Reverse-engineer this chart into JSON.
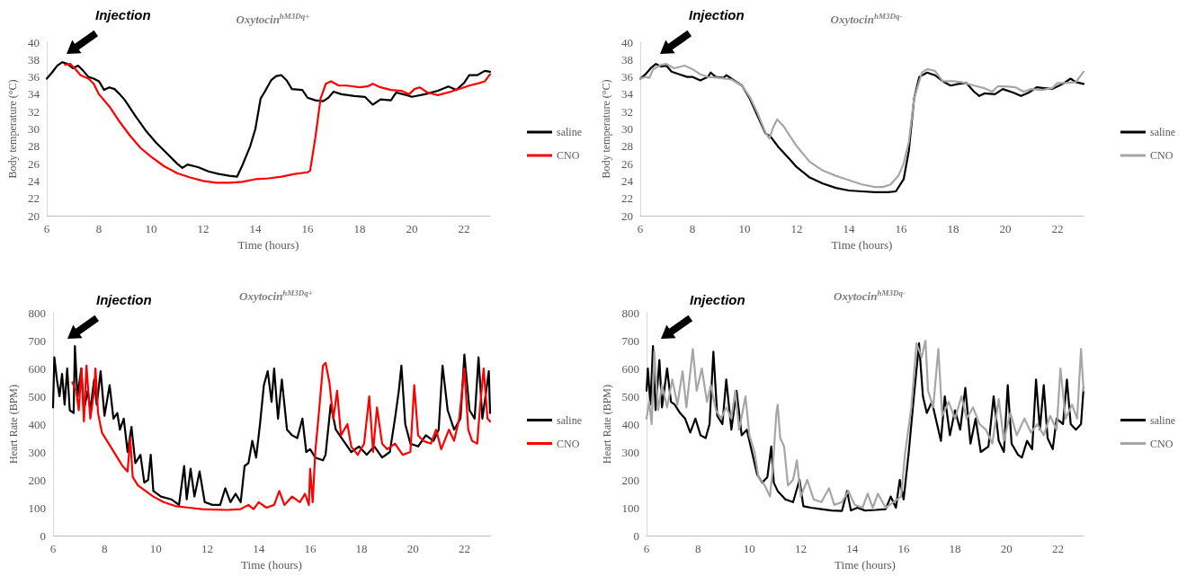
{
  "chart_data": [
    {
      "type": "line",
      "title": "Oxytocin$^{hM3Dq+}$",
      "xlabel": "Time (hours)",
      "ylabel": "Body temperature (°C)",
      "xlim": [
        6,
        23
      ],
      "xticks": [
        6,
        8,
        10,
        12,
        14,
        16,
        18,
        20,
        22
      ],
      "ylim": [
        20,
        40
      ],
      "yticks": [
        20,
        22,
        24,
        26,
        28,
        30,
        32,
        34,
        36,
        38,
        40
      ],
      "legend": "right",
      "line_style": "solid",
      "annotations": [
        "Injection"
      ],
      "series": [
        {
          "name": "saline",
          "color": "#000000",
          "x": [
            6,
            6.2,
            6.4,
            6.6,
            6.8,
            7,
            7.2,
            7.4,
            7.6,
            7.8,
            8,
            8.2,
            8.4,
            8.6,
            8.8,
            9,
            9.4,
            9.8,
            10.2,
            10.6,
            11,
            11.2,
            11.4,
            11.8,
            12.2,
            12.6,
            13,
            13.3,
            13.5,
            13.8,
            14,
            14.2,
            14.4,
            14.6,
            14.8,
            15,
            15.2,
            15.4,
            15.8,
            16,
            16.3,
            16.6,
            16.8,
            17,
            17.3,
            17.8,
            18.2,
            18.5,
            18.8,
            19.2,
            19.4,
            19.8,
            20,
            20.5,
            21,
            21.4,
            21.7,
            22,
            22.2,
            22.5,
            22.8,
            23
          ],
          "values": [
            35.8,
            36.5,
            37.3,
            37.7,
            37.5,
            37,
            37.3,
            36.7,
            36,
            35.8,
            35.5,
            34.5,
            34.8,
            34.6,
            34,
            33.3,
            31.5,
            29.8,
            28.4,
            27.2,
            26,
            25.5,
            25.9,
            25.6,
            25.1,
            24.8,
            24.6,
            24.5,
            25.8,
            28,
            30,
            33.5,
            34.5,
            35.6,
            36.1,
            36.2,
            35.6,
            34.6,
            34.5,
            33.6,
            33.3,
            33.2,
            33.6,
            34.3,
            34,
            33.8,
            33.7,
            32.8,
            33.4,
            33.3,
            34.2,
            33.9,
            33.7,
            34,
            34.4,
            34.9,
            34.5,
            35.3,
            36.2,
            36.2,
            36.7,
            36.6
          ]
        },
        {
          "name": "CNO",
          "color": "#ff0000",
          "x": [
            6.7,
            6.9,
            7.1,
            7.3,
            7.6,
            7.8,
            8,
            8.4,
            8.8,
            9.2,
            9.6,
            10,
            10.5,
            11,
            11.5,
            12,
            12.5,
            13,
            13.5,
            14,
            14.5,
            15,
            15.5,
            16,
            16.1,
            16.3,
            16.5,
            16.7,
            16.9,
            17.2,
            17.5,
            18,
            18.3,
            18.5,
            18.8,
            19.2,
            19.6,
            19.9,
            20.1,
            20.3,
            20.6,
            21,
            21.5,
            22,
            22.2,
            22.6,
            22.8,
            23
          ],
          "values": [
            37.4,
            37.5,
            36.9,
            36.2,
            35.8,
            35.2,
            34,
            32.6,
            30.8,
            29.2,
            27.8,
            26.8,
            25.7,
            24.9,
            24.4,
            24,
            23.8,
            23.8,
            23.9,
            24.2,
            24.3,
            24.5,
            24.8,
            25,
            25.2,
            29,
            33.5,
            35.2,
            35.5,
            35,
            35,
            34.8,
            34.9,
            35.2,
            34.8,
            34.5,
            34.4,
            34,
            34.6,
            34.8,
            34.2,
            33.9,
            34.3,
            34.8,
            35,
            35.3,
            35.5,
            36.3
          ]
        }
      ]
    },
    {
      "type": "line",
      "title": "Oxytocin$^{hM3Dq-}$",
      "xlabel": "Time (hours)",
      "ylabel": "Body temperature (°C)",
      "xlim": [
        6,
        23
      ],
      "xticks": [
        6,
        8,
        10,
        12,
        14,
        16,
        18,
        20,
        22
      ],
      "ylim": [
        20,
        40
      ],
      "yticks": [
        20,
        22,
        24,
        26,
        28,
        30,
        32,
        34,
        36,
        38,
        40
      ],
      "legend": "right",
      "line_style": "solid",
      "annotations": [
        "Injection"
      ],
      "series": [
        {
          "name": "saline",
          "color": "#000000",
          "x": [
            6,
            6.2,
            6.4,
            6.6,
            6.8,
            7,
            7.2,
            7.5,
            7.8,
            8,
            8.3,
            8.6,
            8.7,
            8.9,
            9.2,
            9.3,
            9.6,
            9.9,
            10.2,
            10.5,
            10.8,
            11,
            11.3,
            11.7,
            12,
            12.5,
            13,
            13.5,
            14,
            14.5,
            15,
            15.5,
            15.8,
            16.1,
            16.3,
            16.5,
            16.7,
            17,
            17.3,
            17.6,
            17.9,
            18.2,
            18.5,
            18.8,
            19,
            19.2,
            19.6,
            19.9,
            20.3,
            20.6,
            20.9,
            21.2,
            21.5,
            21.8,
            22.2,
            22.5,
            22.7,
            23
          ],
          "values": [
            35.8,
            36.3,
            37,
            37.5,
            37.2,
            37.3,
            36.6,
            36.3,
            36,
            36,
            35.6,
            36,
            36.5,
            36,
            35.9,
            36.2,
            35.6,
            35,
            33.5,
            31.5,
            29.5,
            29.1,
            27.9,
            26.6,
            25.6,
            24.4,
            23.7,
            23.2,
            22.9,
            22.8,
            22.7,
            22.7,
            22.8,
            24.2,
            27.5,
            33.5,
            36,
            36.5,
            36.2,
            35.5,
            35,
            35.2,
            35.3,
            34.3,
            33.8,
            34.1,
            34,
            34.6,
            34.2,
            33.8,
            34.2,
            34.8,
            34.7,
            34.6,
            35.2,
            35.8,
            35.4,
            35.2
          ]
        },
        {
          "name": "CNO",
          "color": "#a6a6a6",
          "x": [
            6,
            6.2,
            6.35,
            6.5,
            6.8,
            7,
            7.3,
            7.7,
            8,
            8.3,
            8.6,
            9,
            9.5,
            9.9,
            10.2,
            10.5,
            10.8,
            10.95,
            11.1,
            11.25,
            11.5,
            12,
            12.5,
            13,
            13.5,
            14,
            14.5,
            15,
            15.3,
            15.6,
            15.9,
            16.1,
            16.3,
            16.5,
            16.8,
            17,
            17.3,
            17.6,
            18,
            18.3,
            18.8,
            19.2,
            19.5,
            19.7,
            20,
            20.4,
            20.7,
            21,
            21.4,
            21.8,
            22,
            22.3,
            22.7,
            23
          ],
          "values": [
            35.8,
            36,
            35.9,
            36.9,
            37.4,
            37.5,
            37,
            37.3,
            36.9,
            36.3,
            36,
            35.9,
            35.7,
            35,
            33.7,
            31.8,
            29.6,
            28.9,
            30.2,
            31.1,
            30.3,
            28,
            26.2,
            25.2,
            24.6,
            24.1,
            23.6,
            23.3,
            23.3,
            23.6,
            24.6,
            26,
            28.5,
            33.5,
            36.5,
            36.9,
            36.7,
            35.5,
            35.5,
            35.4,
            35,
            34.7,
            34.3,
            34.9,
            34.9,
            34.8,
            34.3,
            34.6,
            34.5,
            34.7,
            35.3,
            35.3,
            35.4,
            36.6
          ]
        }
      ]
    },
    {
      "type": "line",
      "title": "Oxytocin$^{hM3Dq+}$",
      "xlabel": "Time (hours)",
      "ylabel": "Heart Rate (BPM)",
      "xlim": [
        6,
        23
      ],
      "xticks": [
        6,
        8,
        10,
        12,
        14,
        16,
        18,
        20,
        22
      ],
      "ylim": [
        0,
        800
      ],
      "yticks": [
        0,
        100,
        200,
        300,
        400,
        500,
        600,
        700,
        800
      ],
      "legend": "right",
      "line_style": "solid",
      "annotations": [
        "Injection"
      ],
      "series": [
        {
          "name": "saline",
          "color": "#000000",
          "x": [
            6,
            6.05,
            6.15,
            6.25,
            6.35,
            6.45,
            6.55,
            6.65,
            6.8,
            6.85,
            6.95,
            7.1,
            7.2,
            7.35,
            7.45,
            7.6,
            7.7,
            7.85,
            8,
            8.2,
            8.35,
            8.5,
            8.6,
            8.75,
            8.9,
            9.05,
            9.2,
            9.4,
            9.55,
            9.7,
            9.8,
            9.9,
            10.2,
            10.6,
            10.9,
            11.1,
            11.2,
            11.35,
            11.5,
            11.7,
            11.9,
            12.2,
            12.5,
            12.7,
            12.9,
            13.1,
            13.3,
            13.45,
            13.6,
            13.75,
            13.9,
            14.05,
            14.2,
            14.35,
            14.5,
            14.6,
            14.75,
            14.9,
            15.1,
            15.3,
            15.5,
            15.7,
            15.85,
            16,
            16.2,
            16.5,
            16.6,
            16.8,
            17,
            17.3,
            17.6,
            17.9,
            18.2,
            18.5,
            18.8,
            19.1,
            19.3,
            19.45,
            19.55,
            19.7,
            19.9,
            20.2,
            20.5,
            20.8,
            21,
            21.15,
            21.35,
            21.6,
            21.85,
            22,
            22.2,
            22.4,
            22.55,
            22.7,
            22.85,
            22.95,
            23
          ],
          "values": [
            460,
            640,
            560,
            500,
            580,
            470,
            600,
            450,
            440,
            680,
            500,
            600,
            450,
            520,
            450,
            560,
            470,
            590,
            430,
            540,
            420,
            440,
            380,
            420,
            300,
            390,
            260,
            290,
            190,
            200,
            290,
            160,
            140,
            130,
            110,
            250,
            130,
            240,
            140,
            230,
            120,
            110,
            110,
            170,
            120,
            150,
            120,
            250,
            260,
            340,
            280,
            400,
            540,
            590,
            480,
            600,
            420,
            560,
            380,
            360,
            350,
            420,
            300,
            310,
            280,
            270,
            290,
            470,
            380,
            340,
            300,
            320,
            290,
            320,
            280,
            300,
            420,
            520,
            610,
            400,
            330,
            320,
            360,
            340,
            380,
            610,
            450,
            380,
            420,
            650,
            450,
            420,
            640,
            420,
            520,
            590,
            440
          ]
        },
        {
          "name": "CNO",
          "color": "#ff0000",
          "x": [
            6.75,
            6.9,
            7,
            7.1,
            7.2,
            7.3,
            7.45,
            7.6,
            7.65,
            7.75,
            7.9,
            8.1,
            8.3,
            8.5,
            8.7,
            8.9,
            9,
            9.1,
            9.3,
            9.6,
            9.9,
            10.3,
            10.8,
            11.3,
            11.8,
            12.3,
            12.8,
            13.3,
            13.6,
            13.8,
            14,
            14.3,
            14.6,
            14.8,
            15,
            15.3,
            15.6,
            15.8,
            15.95,
            16,
            16.1,
            16.2,
            16.35,
            16.5,
            16.6,
            16.75,
            16.9,
            17.05,
            17.2,
            17.45,
            17.6,
            17.85,
            18.1,
            18.3,
            18.45,
            18.6,
            18.8,
            19,
            19.3,
            19.6,
            19.9,
            20.05,
            20.2,
            20.4,
            20.7,
            20.9,
            21.1,
            21.4,
            21.6,
            21.8,
            22,
            22.15,
            22.3,
            22.5,
            22.6,
            22.75,
            22.9,
            23
          ],
          "values": [
            550,
            520,
            450,
            600,
            410,
            610,
            420,
            520,
            600,
            440,
            370,
            340,
            310,
            280,
            250,
            230,
            350,
            210,
            180,
            160,
            140,
            120,
            105,
            100,
            95,
            93,
            92,
            95,
            110,
            95,
            120,
            100,
            110,
            160,
            110,
            140,
            120,
            150,
            110,
            240,
            120,
            300,
            450,
            610,
            620,
            550,
            420,
            520,
            360,
            400,
            320,
            290,
            330,
            500,
            300,
            460,
            330,
            310,
            330,
            290,
            300,
            540,
            360,
            340,
            330,
            380,
            310,
            380,
            340,
            420,
            600,
            380,
            340,
            330,
            450,
            600,
            420,
            410
          ]
        }
      ]
    },
    {
      "type": "line",
      "title": "Oxytocin$^{hM3Dq-}$",
      "xlabel": "Time (hours)",
      "ylabel": "Heart Rate (BPM)",
      "xlim": [
        6,
        23
      ],
      "xticks": [
        6,
        8,
        10,
        12,
        14,
        16,
        18,
        20,
        22
      ],
      "ylim": [
        0,
        800
      ],
      "yticks": [
        0,
        100,
        200,
        300,
        400,
        500,
        600,
        700,
        800
      ],
      "legend": "right",
      "line_style": "solid",
      "annotations": [
        "Injection"
      ],
      "series": [
        {
          "name": "saline",
          "color": "#000000",
          "x": [
            6,
            6.05,
            6.15,
            6.25,
            6.35,
            6.5,
            6.6,
            6.8,
            6.95,
            7.1,
            7.3,
            7.5,
            7.7,
            7.9,
            8.1,
            8.3,
            8.45,
            8.6,
            8.75,
            8.95,
            9.1,
            9.3,
            9.5,
            9.7,
            9.9,
            10.1,
            10.3,
            10.5,
            10.7,
            10.85,
            10.95,
            11.1,
            11.4,
            11.7,
            11.95,
            12.1,
            12.4,
            12.8,
            13.2,
            13.6,
            13.8,
            13.95,
            14.2,
            14.5,
            14.9,
            15.3,
            15.5,
            15.7,
            15.85,
            16,
            16.2,
            16.4,
            16.6,
            16.75,
            16.9,
            17.1,
            17.3,
            17.45,
            17.6,
            17.8,
            18,
            18.2,
            18.4,
            18.6,
            18.8,
            19,
            19.3,
            19.5,
            19.7,
            19.9,
            20.05,
            20.2,
            20.45,
            20.6,
            20.8,
            21,
            21.15,
            21.3,
            21.45,
            21.6,
            21.8,
            21.95,
            22.2,
            22.35,
            22.5,
            22.7,
            22.9,
            23
          ],
          "values": [
            520,
            600,
            470,
            680,
            450,
            630,
            460,
            600,
            480,
            470,
            440,
            420,
            370,
            420,
            360,
            350,
            400,
            660,
            430,
            400,
            560,
            380,
            520,
            360,
            380,
            300,
            220,
            190,
            210,
            320,
            190,
            160,
            130,
            120,
            200,
            105,
            100,
            95,
            90,
            88,
            160,
            90,
            100,
            90,
            92,
            95,
            140,
            100,
            200,
            130,
            300,
            500,
            690,
            500,
            440,
            480,
            400,
            340,
            500,
            360,
            450,
            380,
            530,
            330,
            420,
            300,
            320,
            500,
            340,
            300,
            540,
            330,
            290,
            280,
            340,
            310,
            560,
            380,
            540,
            350,
            310,
            420,
            400,
            560,
            400,
            380,
            400,
            530
          ]
        },
        {
          "name": "CNO",
          "color": "#a6a6a6",
          "x": [
            6,
            6.1,
            6.2,
            6.3,
            6.45,
            6.6,
            6.8,
            7,
            7.2,
            7.4,
            7.55,
            7.8,
            7.95,
            8.15,
            8.35,
            8.5,
            8.7,
            8.9,
            9.1,
            9.3,
            9.45,
            9.6,
            9.85,
            10,
            10.2,
            10.35,
            10.6,
            10.8,
            10.9,
            11.05,
            11.1,
            11.2,
            11.35,
            11.5,
            11.7,
            11.85,
            12,
            12.25,
            12.5,
            12.8,
            13.1,
            13.3,
            13.6,
            13.85,
            14.1,
            14.4,
            14.6,
            14.8,
            15,
            15.3,
            15.6,
            15.9,
            16.05,
            16.3,
            16.5,
            16.7,
            16.85,
            16.95,
            17.15,
            17.35,
            17.5,
            17.75,
            18,
            18.25,
            18.45,
            18.7,
            18.95,
            19.2,
            19.45,
            19.7,
            19.9,
            20.15,
            20.4,
            20.7,
            20.95,
            21.2,
            21.45,
            21.7,
            21.95,
            22.1,
            22.3,
            22.55,
            22.75,
            22.9,
            23
          ],
          "values": [
            420,
            480,
            400,
            660,
            450,
            540,
            460,
            560,
            470,
            590,
            460,
            670,
            520,
            600,
            480,
            540,
            450,
            420,
            460,
            420,
            520,
            380,
            500,
            360,
            300,
            210,
            180,
            140,
            230,
            440,
            470,
            350,
            320,
            180,
            200,
            270,
            140,
            200,
            130,
            120,
            170,
            110,
            120,
            160,
            110,
            100,
            150,
            100,
            150,
            100,
            120,
            140,
            290,
            460,
            690,
            640,
            700,
            520,
            460,
            670,
            430,
            480,
            420,
            500,
            420,
            460,
            400,
            380,
            330,
            490,
            340,
            440,
            360,
            420,
            370,
            400,
            360,
            430,
            380,
            600,
            420,
            470,
            420,
            670,
            520
          ]
        }
      ]
    }
  ]
}
